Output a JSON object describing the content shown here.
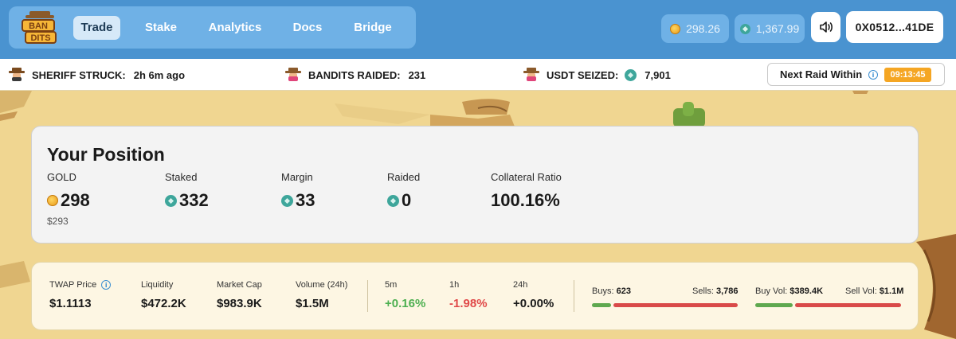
{
  "nav": {
    "tabs": [
      {
        "label": "Trade",
        "active": true
      },
      {
        "label": "Stake"
      },
      {
        "label": "Analytics"
      },
      {
        "label": "Docs"
      },
      {
        "label": "Bridge"
      }
    ]
  },
  "header": {
    "gold_balance": "298.26",
    "usdt_balance": "1,367.99",
    "wallet": "0X0512...41DE",
    "sound_icon": "speaker-icon"
  },
  "ticker": {
    "sheriff_label": "SHERIFF STRUCK:",
    "sheriff_value": "2h 6m ago",
    "raided_label": "BANDITS RAIDED:",
    "raided_value": "231",
    "seized_label": "USDT SEIZED:",
    "seized_value": "7,901",
    "next_raid_label": "Next Raid Within",
    "next_raid_timer": "09:13:45"
  },
  "position": {
    "title": "Your Position",
    "gold_label": "GOLD",
    "gold_value": "298",
    "gold_usd": "$293",
    "staked_label": "Staked",
    "staked_value": "332",
    "margin_label": "Margin",
    "margin_value": "33",
    "raided_label": "Raided",
    "raided_value": "0",
    "collateral_label": "Collateral Ratio",
    "collateral_value": "100.16%"
  },
  "market": {
    "twap_label": "TWAP Price",
    "twap_value": "$1.1113",
    "liquidity_label": "Liquidity",
    "liquidity_value": "$472.2K",
    "mcap_label": "Market Cap",
    "mcap_value": "$983.9K",
    "volume_label": "Volume (24h)",
    "volume_value": "$1.5M",
    "c5m_label": "5m",
    "c5m_value": "+0.16%",
    "c1h_label": "1h",
    "c1h_value": "-1.98%",
    "c24h_label": "24h",
    "c24h_value": "+0.00%",
    "buys_label": "Buys:",
    "buys_value": "623",
    "sells_label": "Sells:",
    "sells_value": "3,786",
    "buyvol_label": "Buy Vol:",
    "buyvol_value": "$389.4K",
    "sellvol_label": "Sell Vol:",
    "sellvol_value": "$1.1M"
  },
  "colors": {
    "header_bg": "#4a93d0",
    "positive": "#4caf50",
    "negative": "#e04848",
    "timer_bg": "#f5a623"
  }
}
